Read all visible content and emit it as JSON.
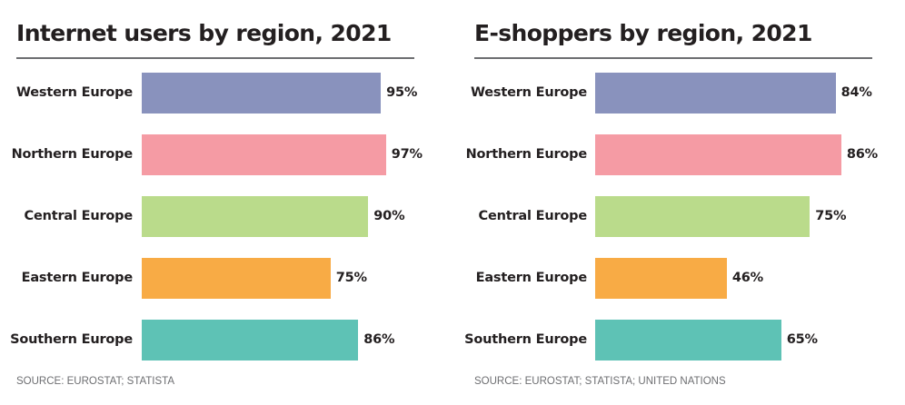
{
  "chart_data": [
    {
      "type": "bar",
      "orientation": "horizontal",
      "title": "Internet users by region, 2021",
      "categories": [
        "Western Europe",
        "Northern Europe",
        "Central Europe",
        "Eastern Europe",
        "Southern Europe"
      ],
      "values": [
        95,
        97,
        90,
        75,
        86
      ],
      "value_labels": [
        "95%",
        "97%",
        "90%",
        "75%",
        "86%"
      ],
      "colors": [
        "#8992bd",
        "#f59ba4",
        "#badb8b",
        "#f8ab45",
        "#5ec2b5"
      ],
      "unit": "%",
      "xlim": [
        0,
        100
      ],
      "grid": false,
      "source": "SOURCE: EUROSTAT; STATISTA"
    },
    {
      "type": "bar",
      "orientation": "horizontal",
      "title": "E-shoppers by region, 2021",
      "categories": [
        "Western Europe",
        "Northern Europe",
        "Central Europe",
        "Eastern Europe",
        "Southern Europe"
      ],
      "values": [
        84,
        86,
        75,
        46,
        65
      ],
      "value_labels": [
        "84%",
        "86%",
        "75%",
        "46%",
        "65%"
      ],
      "colors": [
        "#8992bd",
        "#f59ba4",
        "#badb8b",
        "#f8ab45",
        "#5ec2b5"
      ],
      "unit": "%",
      "xlim": [
        0,
        100
      ],
      "grid": false,
      "source": "SOURCE: EUROSTAT; STATISTA; UNITED NATIONS"
    }
  ]
}
